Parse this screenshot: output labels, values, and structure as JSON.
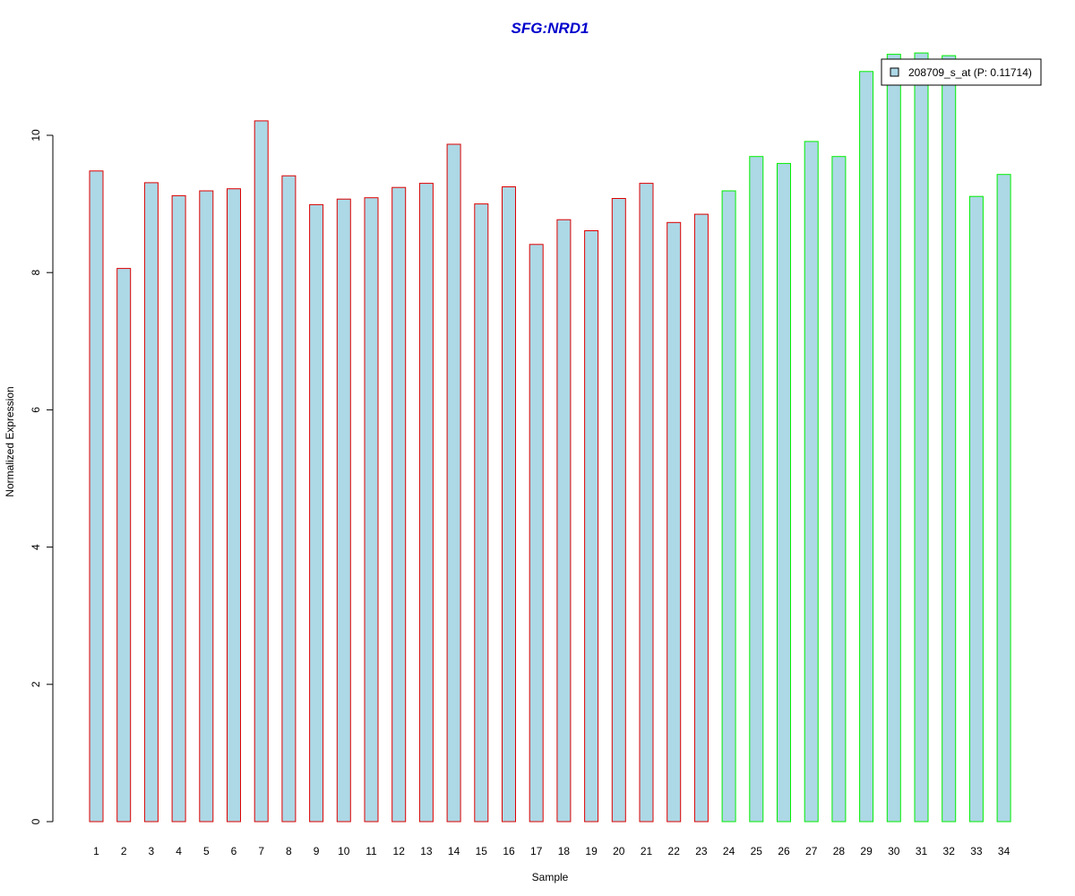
{
  "chart_data": {
    "type": "bar",
    "title": "SFG:NRD1",
    "title_color": "#0000cc",
    "xlabel": "Sample",
    "ylabel": "Normalized Expression",
    "ylim": [
      0,
      11.3
    ],
    "yticks": [
      0,
      2,
      4,
      6,
      8,
      10
    ],
    "grid": false,
    "bar_fill": "#add8e6",
    "group_colors": {
      "group1": "#dd0000",
      "group2": "#00ee00"
    },
    "categories": [
      "1",
      "2",
      "3",
      "4",
      "5",
      "6",
      "7",
      "8",
      "9",
      "10",
      "11",
      "12",
      "13",
      "14",
      "15",
      "16",
      "17",
      "18",
      "19",
      "20",
      "21",
      "22",
      "23",
      "24",
      "25",
      "26",
      "27",
      "28",
      "29",
      "30",
      "31",
      "32",
      "33",
      "34"
    ],
    "groups": [
      "group1",
      "group1",
      "group1",
      "group1",
      "group1",
      "group1",
      "group1",
      "group1",
      "group1",
      "group1",
      "group1",
      "group1",
      "group1",
      "group1",
      "group1",
      "group1",
      "group1",
      "group1",
      "group1",
      "group1",
      "group1",
      "group1",
      "group1",
      "group2",
      "group2",
      "group2",
      "group2",
      "group2",
      "group2",
      "group2",
      "group2",
      "group2",
      "group2",
      "group2"
    ],
    "series": [
      {
        "name": "208709_s_at (P: 0.11714)",
        "values": [
          9.48,
          8.06,
          9.31,
          9.12,
          9.19,
          9.22,
          10.21,
          9.41,
          8.99,
          9.07,
          9.09,
          9.24,
          9.3,
          9.87,
          9.0,
          9.25,
          8.41,
          8.77,
          8.61,
          9.08,
          9.3,
          8.73,
          8.85,
          9.19,
          9.69,
          9.59,
          9.91,
          9.69,
          10.93,
          11.18,
          11.2,
          11.16,
          9.11,
          9.43
        ]
      }
    ],
    "legend_position": "top-right"
  }
}
